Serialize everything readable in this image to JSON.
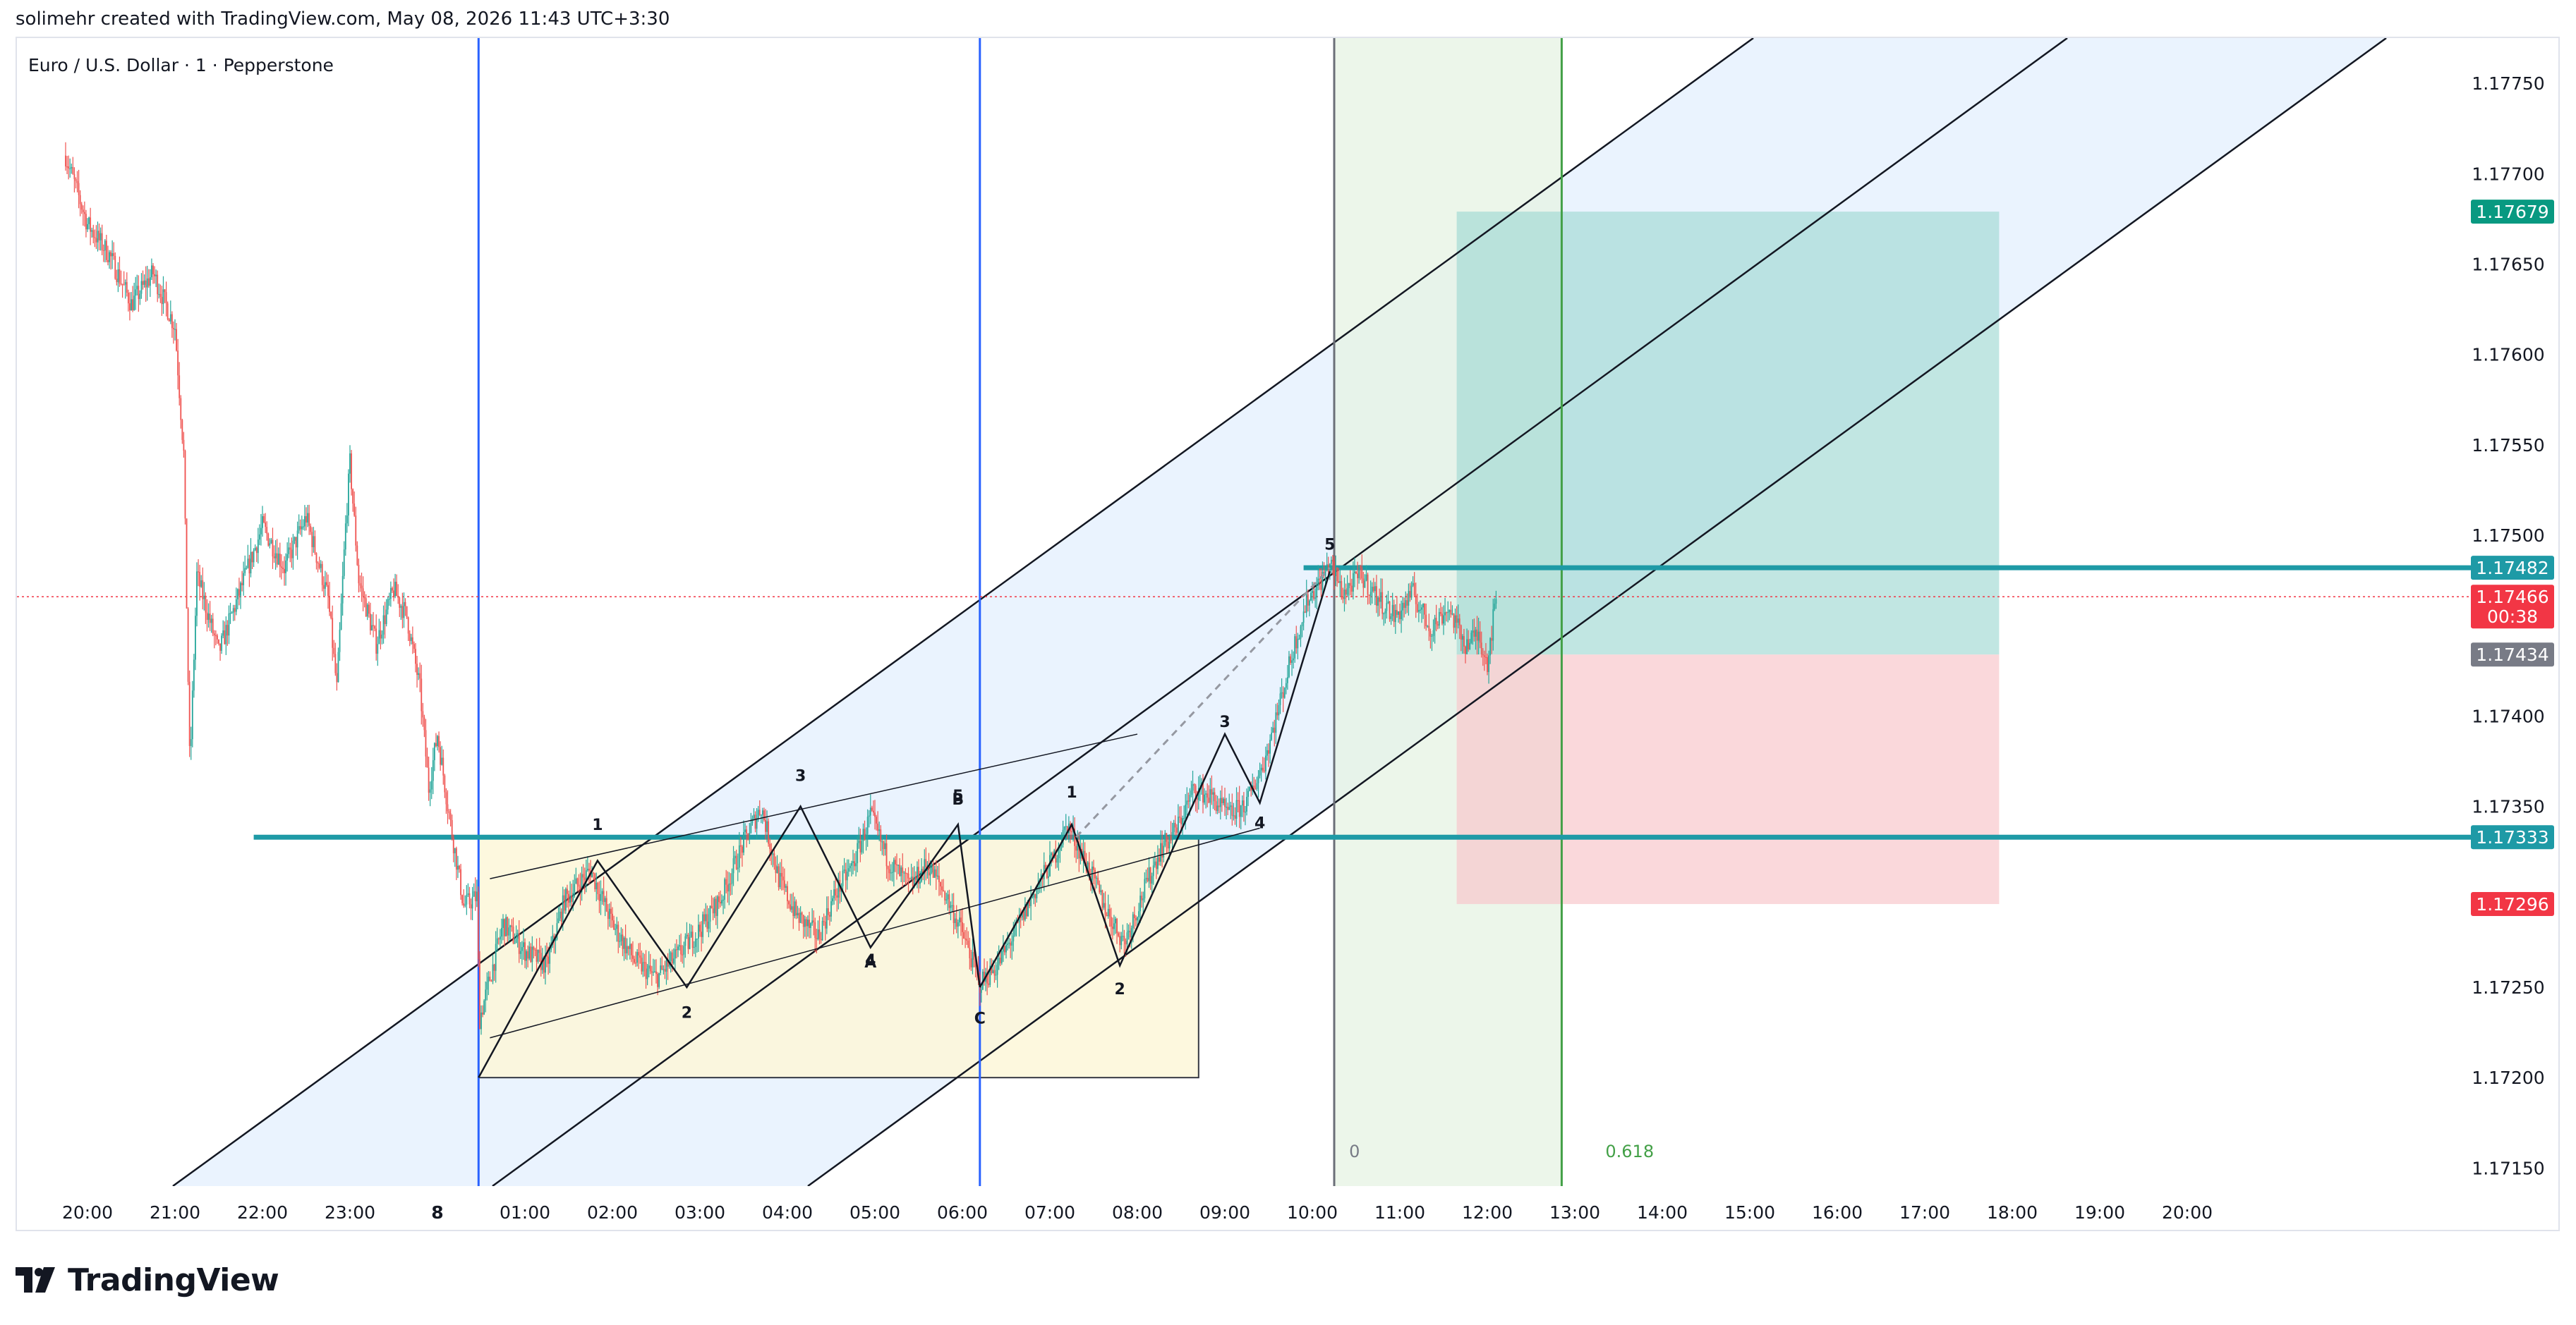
{
  "header": {
    "credit": "solimehr created with TradingView.com, May 08, 2026 11:43 UTC+3:30"
  },
  "symbol_label": "Euro / U.S. Dollar · 1 · Pepperstone",
  "footer": {
    "brand": "TradingView",
    "logo_icon": "tradingview-logo-icon"
  },
  "colors": {
    "up_candle": "#26a69a",
    "down_candle": "#ef5350",
    "level_line": "#1e9aa6",
    "vertical_blue": "#2962ff",
    "vertical_gray": "#6b6f78",
    "vertical_green": "#43a047",
    "channel_fill": "#e3effd",
    "profit_zone": "#9fd9d3",
    "loss_zone": "#f8c7cc",
    "range_box": "#fdf7d9",
    "fib_zone": "#e6f3e3",
    "current_price_badge": "#f23645",
    "entry_badge": "#787b86",
    "target_badge": "#089981"
  },
  "chart_data": {
    "type": "candlestick",
    "symbol": "Euro / U.S. Dollar",
    "interval": "1",
    "broker": "Pepperstone",
    "x_tick_labels": [
      "20:00",
      "21:00",
      "22:00",
      "23:00",
      "8",
      "01:00",
      "02:00",
      "03:00",
      "04:00",
      "05:00",
      "06:00",
      "07:00",
      "08:00",
      "09:00",
      "10:00",
      "11:00",
      "12:00",
      "13:00",
      "14:00",
      "15:00",
      "16:00",
      "17:00",
      "18:00",
      "19:00",
      "20:00"
    ],
    "y_ticks": [
      "1.17750",
      "1.17700",
      "1.17650",
      "1.17600",
      "1.17550",
      "1.17500",
      "1.17400",
      "1.17350",
      "1.17250",
      "1.17200",
      "1.17150"
    ],
    "ylim": [
      1.1714,
      1.17775
    ],
    "price_path": [
      [
        19.75,
        1.1771
      ],
      [
        20.0,
        1.17672
      ],
      [
        20.25,
        1.17655
      ],
      [
        20.5,
        1.17628
      ],
      [
        20.75,
        1.17645
      ],
      [
        21.0,
        1.17615
      ],
      [
        21.1,
        1.17545
      ],
      [
        21.17,
        1.1737
      ],
      [
        21.25,
        1.17478
      ],
      [
        21.5,
        1.17435
      ],
      [
        21.75,
        1.1747
      ],
      [
        22.0,
        1.17505
      ],
      [
        22.25,
        1.17482
      ],
      [
        22.5,
        1.1751
      ],
      [
        22.75,
        1.17465
      ],
      [
        22.85,
        1.17415
      ],
      [
        22.95,
        1.17505
      ],
      [
        23.0,
        1.1754
      ],
      [
        23.1,
        1.17475
      ],
      [
        23.3,
        1.1744
      ],
      [
        23.5,
        1.1747
      ],
      [
        23.65,
        1.17455
      ],
      [
        23.8,
        1.17415
      ],
      [
        23.9,
        1.1736
      ],
      [
        24.0,
        1.1739
      ],
      [
        24.15,
        1.1734
      ],
      [
        24.3,
        1.17295
      ],
      [
        24.45,
        1.173
      ],
      [
        24.48,
        1.17232
      ],
      [
        24.6,
        1.17255
      ],
      [
        24.75,
        1.17285
      ],
      [
        25.0,
        1.1727
      ],
      [
        25.25,
        1.17262
      ],
      [
        25.45,
        1.17298
      ],
      [
        25.75,
        1.17315
      ],
      [
        26.0,
        1.17285
      ],
      [
        26.25,
        1.17265
      ],
      [
        26.5,
        1.17255
      ],
      [
        26.75,
        1.17268
      ],
      [
        27.0,
        1.17282
      ],
      [
        27.25,
        1.173
      ],
      [
        27.5,
        1.1733
      ],
      [
        27.7,
        1.1735
      ],
      [
        27.9,
        1.1731
      ],
      [
        28.1,
        1.1729
      ],
      [
        28.35,
        1.17278
      ],
      [
        28.55,
        1.17302
      ],
      [
        28.75,
        1.17318
      ],
      [
        28.95,
        1.17345
      ],
      [
        29.15,
        1.1732
      ],
      [
        29.4,
        1.17306
      ],
      [
        29.6,
        1.17318
      ],
      [
        29.8,
        1.17302
      ],
      [
        30.0,
        1.1728
      ],
      [
        30.2,
        1.17252
      ],
      [
        30.4,
        1.17262
      ],
      [
        30.6,
        1.1728
      ],
      [
        30.85,
        1.17305
      ],
      [
        31.05,
        1.17322
      ],
      [
        31.2,
        1.1734
      ],
      [
        31.45,
        1.17315
      ],
      [
        31.65,
        1.17292
      ],
      [
        31.85,
        1.17275
      ],
      [
        32.05,
        1.173
      ],
      [
        32.25,
        1.17325
      ],
      [
        32.45,
        1.17338
      ],
      [
        32.65,
        1.1736
      ],
      [
        32.85,
        1.17355
      ],
      [
        33.05,
        1.17345
      ],
      [
        33.25,
        1.17352
      ],
      [
        33.45,
        1.17375
      ],
      [
        33.6,
        1.17402
      ],
      [
        33.8,
        1.1744
      ],
      [
        33.95,
        1.17465
      ],
      [
        34.1,
        1.17475
      ],
      [
        34.2,
        1.17485
      ],
      [
        34.35,
        1.17468
      ],
      [
        34.55,
        1.17478
      ],
      [
        34.75,
        1.17465
      ],
      [
        34.95,
        1.17455
      ],
      [
        35.15,
        1.17468
      ],
      [
        35.35,
        1.17448
      ],
      [
        35.55,
        1.1746
      ],
      [
        35.75,
        1.1744
      ],
      [
        35.9,
        1.17445
      ],
      [
        36.0,
        1.1743
      ],
      [
        36.1,
        1.17465
      ]
    ],
    "drawings": {
      "horizontal_levels": [
        {
          "label": "1.17482",
          "price": 1.17482,
          "color": "#1e9aa6"
        },
        {
          "label": "1.17333",
          "price": 1.17333,
          "color": "#1e9aa6"
        }
      ],
      "price_badges": [
        {
          "label": "1.17679",
          "price": 1.17679,
          "color": "#089981",
          "text_color": "#ffffff"
        },
        {
          "label": "1.17482",
          "price": 1.17482,
          "color": "#1e9aa6",
          "text_color": "#ffffff"
        },
        {
          "label": "1.17466",
          "sub": "00:38",
          "price": 1.17466,
          "color": "#f23645",
          "text_color": "#ffffff"
        },
        {
          "label": "1.17434",
          "price": 1.17434,
          "color": "#787b86",
          "text_color": "#ffffff"
        },
        {
          "label": "1.17333",
          "price": 1.17333,
          "color": "#1e9aa6",
          "text_color": "#ffffff"
        },
        {
          "label": "1.17296",
          "price": 1.17296,
          "color": "#f23645",
          "text_color": "#ffffff"
        }
      ],
      "position": {
        "start_time": 35.65,
        "end_time": 41.85,
        "entry": 1.17434,
        "target": 1.17679,
        "stop": 1.17296
      },
      "range_box": {
        "start_time": 24.47,
        "end_time": 32.7,
        "top": 1.17333,
        "bottom": 1.172
      },
      "vertical_lines": [
        {
          "time": 24.47,
          "color": "#2962ff"
        },
        {
          "time": 30.2,
          "color": "#2962ff"
        },
        {
          "time": 34.25,
          "color": "#6b6f78"
        },
        {
          "time": 36.85,
          "color": "#43a047"
        }
      ],
      "fib_time_zone": {
        "start_time": 34.25,
        "end_time": 36.85,
        "labels": [
          "0",
          "0.618"
        ]
      },
      "wave_labels": [
        {
          "text": "1",
          "time": 25.83,
          "price": 1.17337
        },
        {
          "text": "2",
          "time": 26.85,
          "price": 1.17233
        },
        {
          "text": "3",
          "time": 28.15,
          "price": 1.17364
        },
        {
          "text": "5",
          "time": 29.95,
          "price": 1.17353
        },
        {
          "text": "B",
          "time": 29.95,
          "price": 1.17351
        },
        {
          "text": "4",
          "time": 28.95,
          "price": 1.17262
        },
        {
          "text": "A",
          "time": 28.95,
          "price": 1.17261
        },
        {
          "text": "C",
          "time": 30.2,
          "price": 1.1723
        },
        {
          "text": "1",
          "time": 31.25,
          "price": 1.17355
        },
        {
          "text": "2",
          "time": 31.8,
          "price": 1.17246
        },
        {
          "text": "3",
          "time": 33.0,
          "price": 1.17394
        },
        {
          "text": "4",
          "time": 33.4,
          "price": 1.17338
        },
        {
          "text": "5",
          "time": 34.2,
          "price": 1.17492
        },
        {
          "text": "0",
          "time": 34.42,
          "price": 1.17156
        },
        {
          "text": "0.618",
          "time": 37.35,
          "price": 1.17156
        }
      ]
    }
  }
}
